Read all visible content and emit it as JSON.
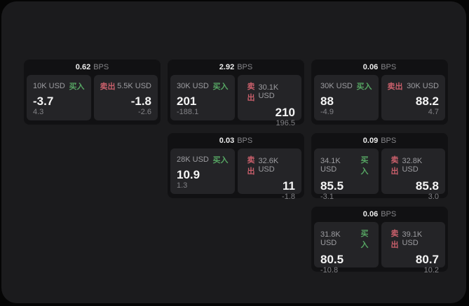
{
  "labels": {
    "unit": "BPS",
    "buy": "买入",
    "sell": "卖出"
  },
  "colors": {
    "buy_green": "#56a563",
    "sell_red": "#c95f6b",
    "panel_bg": "#1b1b1d",
    "card_bg": "#111113",
    "pane_bg": "#242427"
  },
  "cards": [
    {
      "bps": "0.62",
      "row": 1,
      "col": 1,
      "buy": {
        "amount": "10K USD",
        "price": "-3.7",
        "delta": "4.3"
      },
      "sell": {
        "amount": "5.5K USD",
        "price": "-1.8",
        "delta": "-2.6"
      }
    },
    {
      "bps": "2.92",
      "row": 1,
      "col": 2,
      "buy": {
        "amount": "30K USD",
        "price": "201",
        "delta": "-188.1"
      },
      "sell": {
        "amount": "30.1K USD",
        "price": "210",
        "delta": "196.5"
      }
    },
    {
      "bps": "0.06",
      "row": 1,
      "col": 3,
      "buy": {
        "amount": "30K USD",
        "price": "88",
        "delta": "-4.9"
      },
      "sell": {
        "amount": "30K USD",
        "price": "88.2",
        "delta": "4.7"
      }
    },
    {
      "bps": "0.03",
      "row": 2,
      "col": 2,
      "buy": {
        "amount": "28K USD",
        "price": "10.9",
        "delta": "1.3"
      },
      "sell": {
        "amount": "32.6K USD",
        "price": "11",
        "delta": "-1.8"
      }
    },
    {
      "bps": "0.09",
      "row": 2,
      "col": 3,
      "buy": {
        "amount": "34.1K USD",
        "price": "85.5",
        "delta": "-3.1"
      },
      "sell": {
        "amount": "32.8K USD",
        "price": "85.8",
        "delta": "3.0"
      }
    },
    {
      "bps": "0.06",
      "row": 3,
      "col": 3,
      "buy": {
        "amount": "31.8K USD",
        "price": "80.5",
        "delta": "-10.8"
      },
      "sell": {
        "amount": "39.1K USD",
        "price": "80.7",
        "delta": "10.2"
      }
    }
  ]
}
